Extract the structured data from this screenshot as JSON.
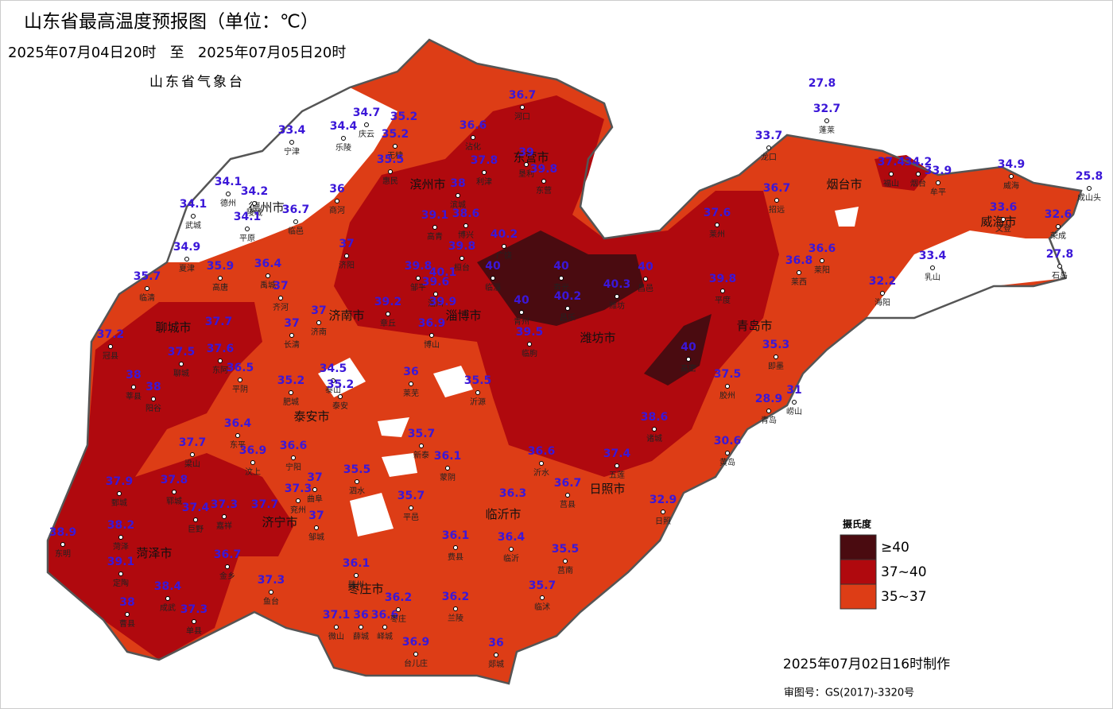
{
  "header": {
    "title": "山东省最高温度预报图（单位：℃）",
    "period": "2025年07月04日20时   至   2025年07月05日20时",
    "issuer": "山东省气象台"
  },
  "cities": [
    "德州市",
    "滨州市",
    "东营市",
    "烟台市",
    "威海市",
    "聊城市",
    "济南市",
    "淄博市",
    "潍坊市",
    "青岛市",
    "泰安市",
    "日照市",
    "临沂市",
    "济宁市",
    "菏泽市",
    "枣庄市"
  ],
  "stations": [
    {
      "name": "宁津",
      "value": 33.4
    },
    {
      "name": "乐陵",
      "value": 34.4
    },
    {
      "name": "庆云",
      "value": 34.7
    },
    {
      "name": null,
      "value": 35.2
    },
    {
      "name": "无棣",
      "value": 35.2
    },
    {
      "name": "沾化",
      "value": 36.6
    },
    {
      "name": "河口",
      "value": 36.7
    },
    {
      "name": "垦利",
      "value": 39
    },
    {
      "name": "东营",
      "value": 39.8
    },
    {
      "name": "利津",
      "value": 37.8
    },
    {
      "name": "惠民",
      "value": 35.5
    },
    {
      "name": "滨城",
      "value": 38
    },
    {
      "name": "德州",
      "value": 34.1
    },
    {
      "name": "陵城",
      "value": 34.2
    },
    {
      "name": "武城",
      "value": 34.1
    },
    {
      "name": "平原",
      "value": 34.1
    },
    {
      "name": "临邑",
      "value": 36.7
    },
    {
      "name": "商河",
      "value": 36
    },
    {
      "name": "高青",
      "value": 39.1
    },
    {
      "name": "博兴",
      "value": 38.6
    },
    {
      "name": "广饶",
      "value": 40.2
    },
    {
      "name": "桓台",
      "value": 39.8
    },
    {
      "name": "济阳",
      "value": 37
    },
    {
      "name": "夏津",
      "value": 34.9
    },
    {
      "name": "高唐",
      "value": 35.9
    },
    {
      "name": "禹城",
      "value": 36.4
    },
    {
      "name": "临清",
      "value": 35.7
    },
    {
      "name": "邹平",
      "value": 39.8
    },
    {
      "name": null,
      "value": 40.1
    },
    {
      "name": "淄川",
      "value": 39.6
    },
    {
      "name": "临淄",
      "value": 40
    },
    {
      "name": "寿光",
      "value": 40
    },
    {
      "name": "昌邑",
      "value": 40
    },
    {
      "name": "潍坊",
      "value": 40.3
    },
    {
      "name": "昌乐",
      "value": 40.2
    },
    {
      "name": "齐河",
      "value": 37
    },
    {
      "name": "济南",
      "value": 37
    },
    {
      "name": "章丘",
      "value": 39.2
    },
    {
      "name": null,
      "value": 39.9
    },
    {
      "name": "博山",
      "value": 36.9
    },
    {
      "name": "青州",
      "value": 40
    },
    {
      "name": "临朐",
      "value": 39.5
    },
    {
      "name": "长清",
      "value": 37
    },
    {
      "name": null,
      "value": 37.7
    },
    {
      "name": "聊城",
      "value": 37.5
    },
    {
      "name": "东阿",
      "value": 37.6
    },
    {
      "name": "冠县",
      "value": 37.2
    },
    {
      "name": "平阴",
      "value": 36.5
    },
    {
      "name": "莘县",
      "value": 38
    },
    {
      "name": "阳谷",
      "value": 38
    },
    {
      "name": "肥城",
      "value": 35.2
    },
    {
      "name": "泰山",
      "value": 34.5
    },
    {
      "name": "泰安",
      "value": 35.2
    },
    {
      "name": "莱芜",
      "value": 36
    },
    {
      "name": "沂源",
      "value": 35.5
    },
    {
      "name": "高密",
      "value": 40
    },
    {
      "name": "平度",
      "value": 39.8
    },
    {
      "name": "莱州",
      "value": 37.6
    },
    {
      "name": "招远",
      "value": 36.7
    },
    {
      "name": "龙口",
      "value": 33.7
    },
    {
      "name": "蓬莱",
      "value": 32.7
    },
    {
      "name": null,
      "value": 27.8
    },
    {
      "name": "福山",
      "value": 37.4
    },
    {
      "name": "烟台",
      "value": 34.2
    },
    {
      "name": "牟平",
      "value": 33.9
    },
    {
      "name": "威海",
      "value": 34.9
    },
    {
      "name": "成山头",
      "value": 25.8
    },
    {
      "name": "文登",
      "value": 33.6
    },
    {
      "name": "荣成",
      "value": 32.6
    },
    {
      "name": "石岛",
      "value": 27.8
    },
    {
      "name": "乳山",
      "value": 33.4
    },
    {
      "name": "海阳",
      "value": 32.2
    },
    {
      "name": "莱阳",
      "value": 36.6
    },
    {
      "name": "莱西",
      "value": 36.8
    },
    {
      "name": "即墨",
      "value": 35.3
    },
    {
      "name": "胶州",
      "value": 37.5
    },
    {
      "name": "青岛",
      "value": 28.9
    },
    {
      "name": "崂山",
      "value": 31
    },
    {
      "name": "黄岛",
      "value": 30.6
    },
    {
      "name": "诸城",
      "value": 38.6
    },
    {
      "name": "五莲",
      "value": 37.4
    },
    {
      "name": "日照",
      "value": 32.9
    },
    {
      "name": "莒县",
      "value": 36.7
    },
    {
      "name": "沂水",
      "value": 36.6
    },
    {
      "name": "蒙阴",
      "value": 36.1
    },
    {
      "name": "新泰",
      "value": 35.7
    },
    {
      "name": "宁阳",
      "value": 36.6
    },
    {
      "name": "汶上",
      "value": 36.9
    },
    {
      "name": "东平",
      "value": 36.4
    },
    {
      "name": "梁山",
      "value": 37.7
    },
    {
      "name": "郓城",
      "value": 37.8
    },
    {
      "name": "鄄城",
      "value": 37.9
    },
    {
      "name": "曲阜",
      "value": 37
    },
    {
      "name": "兖州",
      "value": 37.3
    },
    {
      "name": "泗水",
      "value": 35.5
    },
    {
      "name": "平邑",
      "value": 35.7
    },
    {
      "name": null,
      "value": 36.3
    },
    {
      "name": "费县",
      "value": 36.1
    },
    {
      "name": "临沂",
      "value": 36.4
    },
    {
      "name": "邹城",
      "value": 37
    },
    {
      "name": "嘉祥",
      "value": 37.3
    },
    {
      "name": "巨野",
      "value": 37.4
    },
    {
      "name": null,
      "value": 37.7
    },
    {
      "name": "金乡",
      "value": 36.7
    },
    {
      "name": "鱼台",
      "value": 37.3
    },
    {
      "name": "菏泽",
      "value": 38.2
    },
    {
      "name": "东明",
      "value": 38.9
    },
    {
      "name": "定陶",
      "value": 39.1
    },
    {
      "name": "成武",
      "value": 38.4
    },
    {
      "name": "曹县",
      "value": 38
    },
    {
      "name": "单县",
      "value": 37.3
    },
    {
      "name": "滕州",
      "value": 36.1
    },
    {
      "name": "微山",
      "value": 37.1
    },
    {
      "name": "薛城",
      "value": 36
    },
    {
      "name": "峄城",
      "value": 36.6
    },
    {
      "name": "枣庄",
      "value": 36.2
    },
    {
      "name": "台儿庄",
      "value": 36.9
    },
    {
      "name": "兰陵",
      "value": 36.2
    },
    {
      "name": "郯城",
      "value": 36
    },
    {
      "name": "临沭",
      "value": 35.7
    },
    {
      "name": "莒南",
      "value": 35.5
    }
  ],
  "legend": {
    "title": "摄氏度",
    "items": [
      {
        "label": "≥40",
        "color": "#4a0b10"
      },
      {
        "label": "37~40",
        "color": "#b0090e"
      },
      {
        "label": "35~37",
        "color": "#dd3d16"
      }
    ]
  },
  "footer": {
    "made": "2025年07月02日16时制作",
    "approval": "审图号：GS(2017)-3320号"
  }
}
